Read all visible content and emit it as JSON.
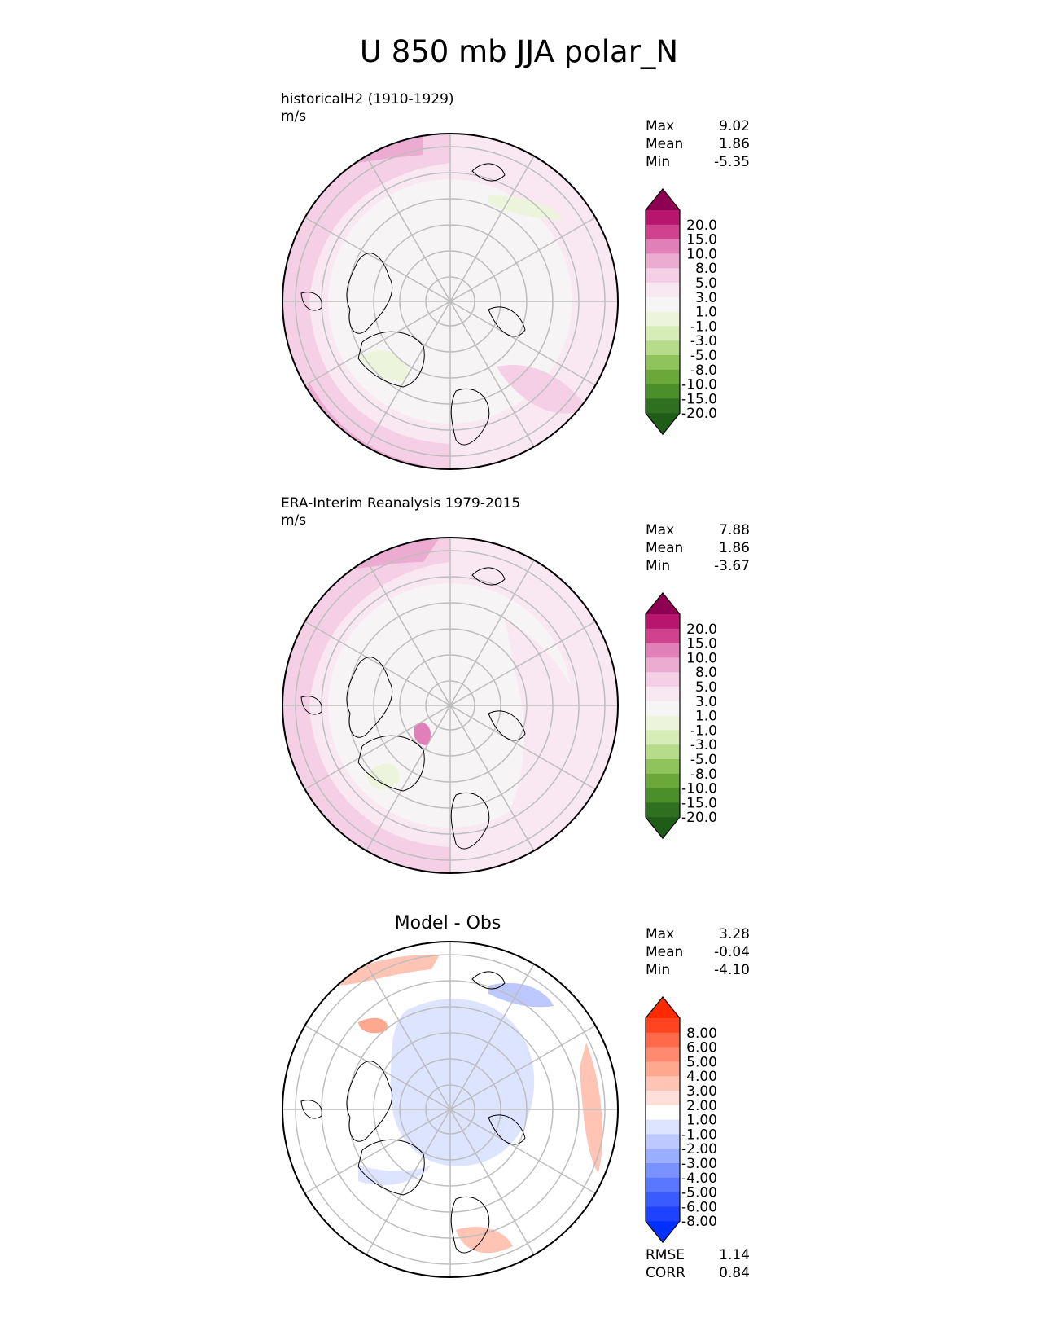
{
  "figure_title": "U 850 mb JJA polar_N",
  "chart_data": [
    {
      "type": "heatmap",
      "projection": "north polar stereographic",
      "title": "historicalH2 (1910-1929)",
      "units": "m/s",
      "stats": [
        {
          "label": "Max",
          "value": "9.02"
        },
        {
          "label": "Mean",
          "value": "1.86"
        },
        {
          "label": "Min",
          "value": "-5.35"
        }
      ],
      "colorbar": {
        "ticks": [
          "20.0",
          "15.0",
          "10.0",
          "8.0",
          "5.0",
          "3.0",
          "1.0",
          "-1.0",
          "-3.0",
          "-5.0",
          "-8.0",
          "-10.0",
          "-15.0",
          "-20.0"
        ],
        "colors": [
          "#8e0152",
          "#b7156e",
          "#d0418e",
          "#e17fb8",
          "#ecacd2",
          "#f4cfe5",
          "#f9e8f2",
          "#f5f5f5",
          "#ecf5dc",
          "#d6edb8",
          "#b6dc8a",
          "#8fc35c",
          "#6aa83a",
          "#4a8f2a",
          "#2f7020",
          "#1f5c18"
        ]
      },
      "regions_note": "mostly weak positive; stronger westerlies along mid-latitude edge"
    },
    {
      "type": "heatmap",
      "projection": "north polar stereographic",
      "title": "ERA-Interim Reanalysis 1979-2015",
      "units": "m/s",
      "stats": [
        {
          "label": "Max",
          "value": "7.88"
        },
        {
          "label": "Mean",
          "value": "1.86"
        },
        {
          "label": "Min",
          "value": "-3.67"
        }
      ],
      "colorbar": {
        "ticks": [
          "20.0",
          "15.0",
          "10.0",
          "8.0",
          "5.0",
          "3.0",
          "1.0",
          "-1.0",
          "-3.0",
          "-5.0",
          "-8.0",
          "-10.0",
          "-15.0",
          "-20.0"
        ],
        "colors": [
          "#8e0152",
          "#b7156e",
          "#d0418e",
          "#e17fb8",
          "#ecacd2",
          "#f4cfe5",
          "#f9e8f2",
          "#f5f5f5",
          "#ecf5dc",
          "#d6edb8",
          "#b6dc8a",
          "#8fc35c",
          "#6aa83a",
          "#4a8f2a",
          "#2f7020",
          "#1f5c18"
        ]
      }
    },
    {
      "type": "heatmap",
      "projection": "north polar stereographic",
      "title": "Model - Obs",
      "stats": [
        {
          "label": "Max",
          "value": "3.28"
        },
        {
          "label": "Mean",
          "value": "-0.04"
        },
        {
          "label": "Min",
          "value": "-4.10"
        }
      ],
      "colorbar": {
        "ticks": [
          "8.00",
          "6.00",
          "5.00",
          "4.00",
          "3.00",
          "2.00",
          "1.00",
          "-1.00",
          "-2.00",
          "-3.00",
          "-4.00",
          "-5.00",
          "-6.00",
          "-8.00"
        ],
        "colors": [
          "#ff2a00",
          "#ff4422",
          "#ff6a4a",
          "#ff8a70",
          "#ffa890",
          "#ffc4b4",
          "#ffe0d8",
          "#ffffff",
          "#dde4ff",
          "#bcc8ff",
          "#9aaeff",
          "#7a92ff",
          "#5a78ff",
          "#3a5cff",
          "#1e42ff",
          "#0030ff"
        ]
      },
      "metrics": [
        {
          "label": "RMSE",
          "value": "1.14"
        },
        {
          "label": "CORR",
          "value": "0.84"
        }
      ]
    }
  ]
}
